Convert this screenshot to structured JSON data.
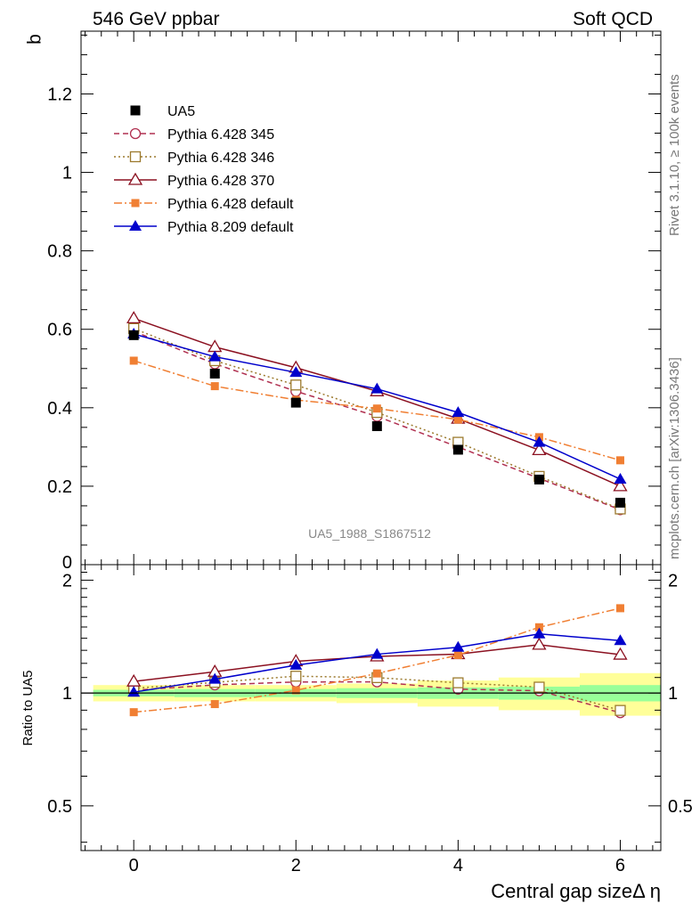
{
  "chart_data": {
    "type": "line",
    "top_left_label": "546 GeV ppbar",
    "top_right_label": "Soft QCD",
    "ylabel": "b",
    "xlabel": "Central gap sizeΔ η",
    "ratio_ylabel": "Ratio to UA5",
    "watermark": "UA5_1988_S1867512",
    "side_label_1": "Rivet 3.1.10, ≥ 100k events",
    "side_label_2": "mcplots.cern.ch [arXiv:1306.3436]",
    "x": [
      0,
      1,
      2,
      3,
      4,
      5,
      6
    ],
    "xlim": [
      -0.65,
      6.5
    ],
    "ylim": [
      0,
      1.36
    ],
    "ratio_ylim": [
      0.38,
      2.2
    ],
    "x_ticks": [
      "0",
      "2",
      "4",
      "6"
    ],
    "y_ticks": [
      "0.2",
      "0.4",
      "0.6",
      "0.8",
      "1",
      "1.2"
    ],
    "y_tick_zero": "0",
    "ratio_y_ticks": [
      "0.5",
      "1",
      "2"
    ],
    "ratio_band_outer": [
      0.05,
      0.05,
      0.05,
      0.06,
      0.08,
      0.1,
      0.13
    ],
    "ratio_band_inner": [
      0.02,
      0.025,
      0.025,
      0.03,
      0.035,
      0.04,
      0.05
    ],
    "data_series": {
      "name": "UA5",
      "values": [
        0.585,
        0.487,
        0.413,
        0.353,
        0.293,
        0.217,
        0.158
      ],
      "color": "#000000"
    },
    "series": [
      {
        "name": "Pythia 6.428 345",
        "values": [
          0.595,
          0.512,
          0.442,
          0.378,
          0.3,
          0.22,
          0.14
        ],
        "color": "#b03050",
        "dash": "6,4",
        "marker": "circle-open"
      },
      {
        "name": "Pythia 6.428 346",
        "values": [
          0.602,
          0.52,
          0.458,
          0.388,
          0.312,
          0.225,
          0.142
        ],
        "color": "#9c7a2e",
        "dash": "2,3",
        "marker": "square-open"
      },
      {
        "name": "Pythia 6.428 370",
        "values": [
          0.628,
          0.555,
          0.502,
          0.442,
          0.372,
          0.292,
          0.2
        ],
        "color": "#8b1020",
        "dash": "",
        "marker": "triangle-open"
      },
      {
        "name": "Pythia 6.428 default",
        "values": [
          0.52,
          0.455,
          0.42,
          0.398,
          0.37,
          0.325,
          0.266
        ],
        "color": "#f07f33",
        "dash": "9,3,2,3",
        "marker": "square-filled"
      },
      {
        "name": "Pythia 8.209 default",
        "values": [
          0.588,
          0.53,
          0.49,
          0.448,
          0.388,
          0.312,
          0.218
        ],
        "color": "#0000cc",
        "dash": "",
        "marker": "triangle-filled"
      }
    ],
    "legend_position": "top-left"
  }
}
